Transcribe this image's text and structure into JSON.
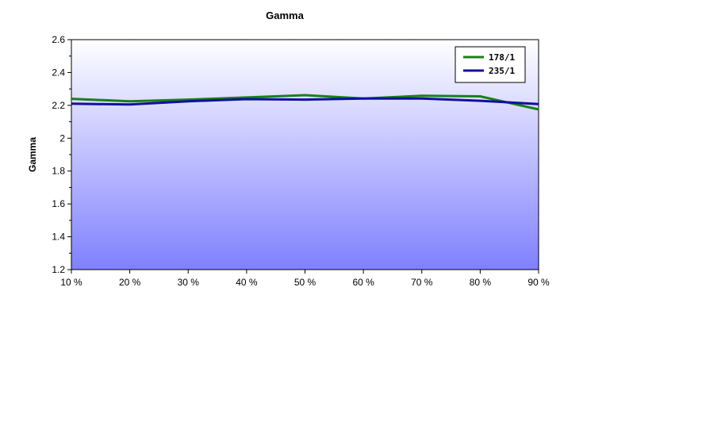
{
  "chart_data": {
    "type": "line",
    "title": "Gamma",
    "xlabel": "",
    "ylabel": "Gamma",
    "categories": [
      "10 %",
      "20 %",
      "30 %",
      "40 %",
      "50 %",
      "60 %",
      "70 %",
      "80 %",
      "90 %"
    ],
    "ylim": [
      1.2,
      2.6
    ],
    "yticks": [
      "1.2",
      "1.4",
      "1.6",
      "1.8",
      "2",
      "2.2",
      "2.4",
      "2.6"
    ],
    "grid": false,
    "legend_position": "top-right",
    "series": [
      {
        "name": "178/1",
        "color": "#1a7f1a",
        "values": [
          2.24,
          2.225,
          2.235,
          2.248,
          2.262,
          2.242,
          2.258,
          2.255,
          2.175
        ]
      },
      {
        "name": "235/1",
        "color": "#1010a0",
        "values": [
          2.21,
          2.205,
          2.225,
          2.238,
          2.235,
          2.242,
          2.242,
          2.228,
          2.208
        ]
      }
    ]
  }
}
